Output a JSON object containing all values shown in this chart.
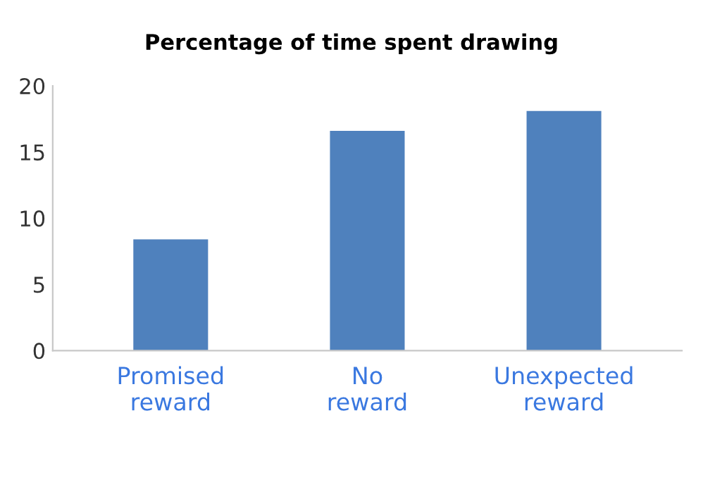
{
  "chart_data": {
    "type": "bar",
    "title": "Percentage of time spent drawing",
    "categories": [
      "Promised\nreward",
      "No\nreward",
      "Unexpected\nreward"
    ],
    "values": [
      8.4,
      16.6,
      18.1
    ],
    "color": "#4f81bd",
    "ylim": [
      0,
      20
    ],
    "yticks": [
      0,
      5,
      10,
      15,
      20
    ],
    "grid": false
  }
}
